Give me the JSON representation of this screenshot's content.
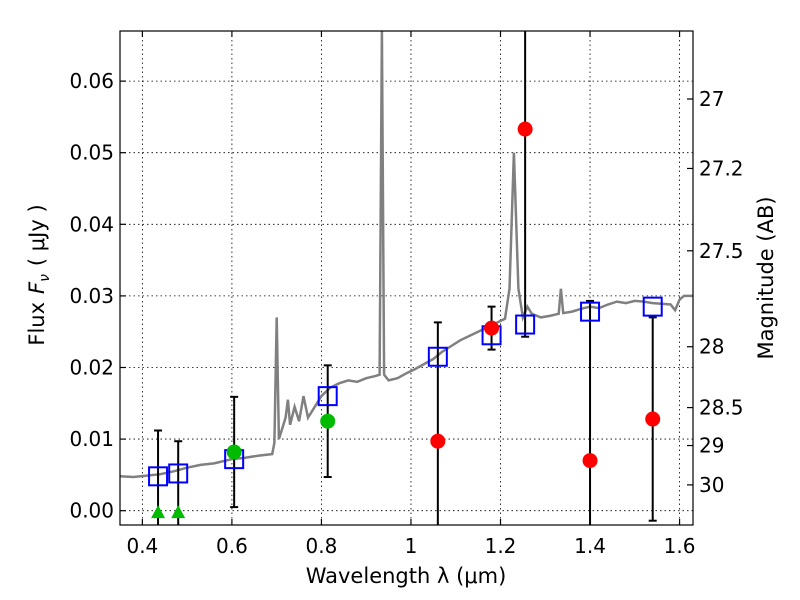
{
  "chart_data": {
    "type": "scatter",
    "xlabel": "Wavelength  λ (μm)",
    "ylabel_prefix": "Flux",
    "ylabel_symbol": "F",
    "ylabel_subscript": "ν",
    "ylabel_unit": "( μJy )",
    "y2label": "Magnitude (AB)",
    "xlim": [
      0.35,
      1.63
    ],
    "ylim": [
      -0.002,
      0.067
    ],
    "xticks": [
      0.4,
      0.6,
      0.8,
      1.0,
      1.2,
      1.4,
      1.6
    ],
    "xtick_labels": [
      "0.4",
      "0.6",
      "0.8",
      "1",
      "1.2",
      "1.4",
      "1.6"
    ],
    "yticks": [
      0.0,
      0.01,
      0.02,
      0.03,
      0.04,
      0.05,
      0.06
    ],
    "ytick_labels": [
      "0.00",
      "0.01",
      "0.02",
      "0.03",
      "0.04",
      "0.05",
      "0.06"
    ],
    "y2ticks": [
      {
        "label": "27",
        "flux": 0.0575
      },
      {
        "label": "27.2",
        "flux": 0.0478
      },
      {
        "label": "27.5",
        "flux": 0.0363
      },
      {
        "label": "28",
        "flux": 0.0229
      },
      {
        "label": "28.5",
        "flux": 0.0144
      },
      {
        "label": "29",
        "flux": 0.0091
      },
      {
        "label": "30",
        "flux": 0.0036
      }
    ],
    "series": [
      {
        "name": "model spectrum",
        "kind": "line",
        "color": "#808080",
        "points": [
          [
            0.35,
            0.0048
          ],
          [
            0.38,
            0.0047
          ],
          [
            0.41,
            0.0049
          ],
          [
            0.44,
            0.0051
          ],
          [
            0.47,
            0.0055
          ],
          [
            0.5,
            0.006
          ],
          [
            0.53,
            0.0064
          ],
          [
            0.56,
            0.0066
          ],
          [
            0.6,
            0.0072
          ],
          [
            0.63,
            0.0074
          ],
          [
            0.66,
            0.0077
          ],
          [
            0.69,
            0.0079
          ],
          [
            0.695,
            0.0095
          ],
          [
            0.7,
            0.027
          ],
          [
            0.705,
            0.01
          ],
          [
            0.71,
            0.011
          ],
          [
            0.72,
            0.013
          ],
          [
            0.725,
            0.0155
          ],
          [
            0.73,
            0.012
          ],
          [
            0.74,
            0.0145
          ],
          [
            0.75,
            0.0125
          ],
          [
            0.76,
            0.016
          ],
          [
            0.77,
            0.013
          ],
          [
            0.78,
            0.014
          ],
          [
            0.8,
            0.016
          ],
          [
            0.82,
            0.0172
          ],
          [
            0.84,
            0.0178
          ],
          [
            0.86,
            0.0182
          ],
          [
            0.88,
            0.018
          ],
          [
            0.9,
            0.0185
          ],
          [
            0.92,
            0.0188
          ],
          [
            0.93,
            0.019
          ],
          [
            0.935,
            0.067
          ],
          [
            0.94,
            0.019
          ],
          [
            0.95,
            0.0182
          ],
          [
            0.97,
            0.0185
          ],
          [
            0.99,
            0.0192
          ],
          [
            1.01,
            0.0198
          ],
          [
            1.03,
            0.0205
          ],
          [
            1.05,
            0.0212
          ],
          [
            1.07,
            0.0222
          ],
          [
            1.09,
            0.023
          ],
          [
            1.11,
            0.0238
          ],
          [
            1.13,
            0.0244
          ],
          [
            1.15,
            0.025
          ],
          [
            1.17,
            0.0256
          ],
          [
            1.19,
            0.0262
          ],
          [
            1.21,
            0.0268
          ],
          [
            1.22,
            0.031
          ],
          [
            1.23,
            0.05
          ],
          [
            1.24,
            0.031
          ],
          [
            1.25,
            0.027
          ],
          [
            1.26,
            0.0285
          ],
          [
            1.27,
            0.0275
          ],
          [
            1.29,
            0.027
          ],
          [
            1.31,
            0.0272
          ],
          [
            1.33,
            0.0275
          ],
          [
            1.335,
            0.031
          ],
          [
            1.34,
            0.0276
          ],
          [
            1.36,
            0.0278
          ],
          [
            1.38,
            0.0282
          ],
          [
            1.4,
            0.0285
          ],
          [
            1.42,
            0.0283
          ],
          [
            1.44,
            0.0288
          ],
          [
            1.46,
            0.0292
          ],
          [
            1.48,
            0.029
          ],
          [
            1.5,
            0.0293
          ],
          [
            1.52,
            0.0292
          ],
          [
            1.54,
            0.029
          ],
          [
            1.56,
            0.0289
          ],
          [
            1.58,
            0.0288
          ],
          [
            1.59,
            0.028
          ],
          [
            1.6,
            0.0295
          ],
          [
            1.61,
            0.03
          ],
          [
            1.63,
            0.03
          ]
        ]
      },
      {
        "name": "model photometry",
        "kind": "open-square",
        "color": "#0000ff",
        "points": [
          [
            0.435,
            0.0048
          ],
          [
            0.48,
            0.0052
          ],
          [
            0.605,
            0.0072
          ],
          [
            0.814,
            0.016
          ],
          [
            1.06,
            0.0215
          ],
          [
            1.18,
            0.0245
          ],
          [
            1.255,
            0.026
          ],
          [
            1.4,
            0.0278
          ],
          [
            1.54,
            0.0285
          ]
        ]
      },
      {
        "name": "detections",
        "kind": "circle",
        "color": "#00bb00",
        "points": [
          [
            0.605,
            0.0082,
            0.0077
          ],
          [
            0.814,
            0.0125,
            0.0078
          ]
        ]
      },
      {
        "name": "upper limits",
        "kind": "triangle",
        "color": "#00bb00",
        "points": [
          [
            0.435,
            -0.0002,
            0.0114
          ],
          [
            0.48,
            -0.0002,
            0.0099
          ]
        ]
      },
      {
        "name": "low significance",
        "kind": "circle",
        "color": "#ff0000",
        "points": [
          [
            1.06,
            0.0097,
            0.0166
          ],
          [
            1.18,
            0.0255,
            0.003
          ],
          [
            1.255,
            0.0533,
            0.029
          ],
          [
            1.4,
            0.007,
            0.0223
          ],
          [
            1.54,
            0.0128,
            0.0142
          ]
        ]
      }
    ]
  }
}
